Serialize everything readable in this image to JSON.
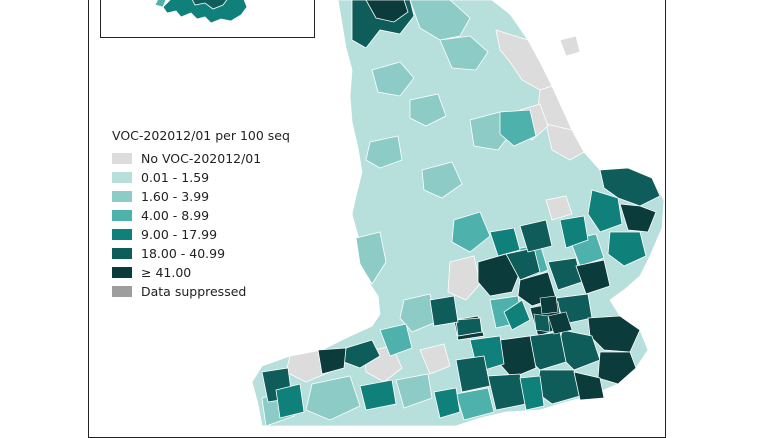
{
  "legend": {
    "title": "VOC-202012/01 per 100 seq",
    "items": [
      {
        "label": "No VOC-202012/01",
        "color": "#dcdcdc"
      },
      {
        "label": "0.01 - 1.59",
        "color": "#b7dfdc"
      },
      {
        "label": "1.60 - 3.99",
        "color": "#8ccbc6"
      },
      {
        "label": "4.00 - 8.99",
        "color": "#4eb1ab"
      },
      {
        "label": "9.00 - 17.99",
        "color": "#10807b"
      },
      {
        "label": "18.00 - 40.99",
        "color": "#0f5d5a"
      },
      {
        "label": "≥ 41.00",
        "color": "#0b3b3a"
      },
      {
        "label": "Data suppressed",
        "color": "#9e9e9e"
      }
    ]
  },
  "colors": {
    "none": "#dcdcdc",
    "c1": "#b7dfdc",
    "c2": "#8ccbc6",
    "c3": "#4eb1ab",
    "c4": "#10807b",
    "c5": "#0f5d5a",
    "c6": "#0b3b3a",
    "suppressed": "#9e9e9e",
    "border": "#ffffff"
  }
}
